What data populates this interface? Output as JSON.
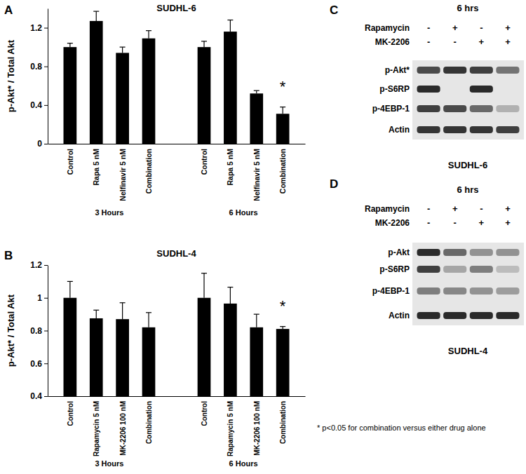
{
  "chart_data": [
    {
      "type": "bar",
      "panel_label": "A",
      "title": "SUDHL-6",
      "y_label": "p-Akt* / Total Akt",
      "categories": [
        "Control",
        "Rapa 5 nM",
        "Nelfinavir 5 nM",
        "Combination"
      ],
      "series": [
        {
          "name": "3 Hours",
          "color": "#000000",
          "values": [
            1.0,
            1.27,
            0.94,
            1.09
          ],
          "errors": [
            0.04,
            0.1,
            0.06,
            0.08
          ]
        },
        {
          "name": "6 Hours",
          "color": "#000000",
          "values": [
            1.0,
            1.16,
            0.52,
            0.31
          ],
          "errors": [
            0.06,
            0.12,
            0.03,
            0.07
          ]
        }
      ],
      "ylim": [
        0,
        1.4
      ],
      "yticks": [
        0,
        0.4,
        0.8,
        1.2
      ],
      "annotations": [
        {
          "text": "*",
          "series": 1,
          "category": 3
        }
      ]
    },
    {
      "type": "bar",
      "panel_label": "B",
      "title": "SUDHL-4",
      "y_label": "p-Akt* / Total Akt",
      "categories": [
        "Control",
        "Rapamycin 5 nM",
        "MK-2206 100 nM",
        "Combination"
      ],
      "series": [
        {
          "name": "3 Hours",
          "color": "#000000",
          "values": [
            1.0,
            0.875,
            0.87,
            0.82
          ],
          "errors": [
            0.1,
            0.05,
            0.1,
            0.09
          ]
        },
        {
          "name": "6 Hours",
          "color": "#000000",
          "values": [
            1.0,
            0.965,
            0.82,
            0.81
          ],
          "errors": [
            0.15,
            0.1,
            0.08,
            0.015
          ]
        }
      ],
      "ylim": [
        0.4,
        1.2
      ],
      "yticks": [
        0.4,
        0.6,
        0.8,
        1,
        1.2
      ],
      "annotations": [
        {
          "text": "*",
          "series": 1,
          "category": 3
        }
      ]
    }
  ],
  "blots": [
    {
      "panel_label": "C",
      "header": "6 hrs",
      "treatments": [
        {
          "name": "Rapamycin",
          "signs": [
            "-",
            "+",
            "-",
            "+"
          ]
        },
        {
          "name": "MK-2206",
          "signs": [
            "-",
            "-",
            "+",
            "+"
          ]
        }
      ],
      "bands": [
        {
          "label": "p-Akt*",
          "intensity": [
            0.75,
            0.85,
            0.8,
            0.55
          ]
        },
        {
          "label": "p-S6RP",
          "intensity": [
            0.9,
            0,
            0.9,
            0
          ]
        },
        {
          "label": "p-4EBP-1",
          "intensity": [
            0.8,
            0.75,
            0.6,
            0.25
          ]
        },
        {
          "label": "Actin",
          "intensity": [
            0.85,
            0.85,
            0.85,
            0.8
          ]
        }
      ],
      "cell_line": "SUDHL-6"
    },
    {
      "panel_label": "D",
      "header": "6 hrs",
      "treatments": [
        {
          "name": "Rapamycin",
          "signs": [
            "-",
            "+",
            "-",
            "+"
          ]
        },
        {
          "name": "MK-2206",
          "signs": [
            "-",
            "-",
            "+",
            "+"
          ]
        }
      ],
      "bands": [
        {
          "label": "p-Akt",
          "intensity": [
            0.9,
            0.6,
            0.4,
            0.4
          ]
        },
        {
          "label": "p-S6RP",
          "intensity": [
            0.8,
            0.3,
            0.5,
            0.2
          ]
        },
        {
          "label": "p-4EBP-1",
          "intensity": [
            0.5,
            0.45,
            0.4,
            0.35
          ]
        },
        {
          "label": "Actin",
          "intensity": [
            0.9,
            0.9,
            0.9,
            0.9
          ]
        }
      ],
      "cell_line": "SUDHL-4"
    }
  ],
  "footnote": "* p<0.05 for combination versus either drug alone"
}
